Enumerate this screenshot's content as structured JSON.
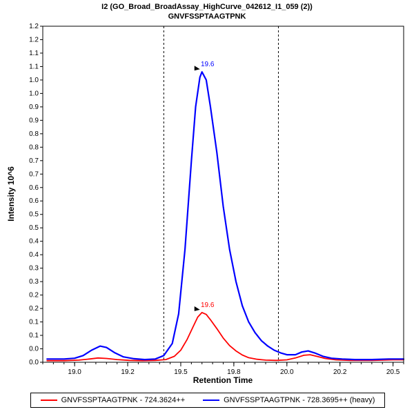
{
  "chart_data": {
    "type": "line",
    "title": "I2 (GO_Broad_BroadAssay_HighCurve_042612_I1_059 (2))",
    "subtitle": "GNVFSSPTAAGTPNK",
    "xlabel": "Retention Time",
    "ylabel": "Intensity 10^6",
    "xlim": [
      18.85,
      20.55
    ],
    "ylim": [
      0,
      1.25
    ],
    "grid": false,
    "legend_position": "bottom",
    "background_color": "#ffffff",
    "plot_border_color": "#000000",
    "x_tick_values": [
      19.0,
      19.25,
      19.5,
      19.75,
      20.0,
      20.25,
      20.5
    ],
    "x_tick_labels": [
      "19.0",
      "19.2",
      "19.5",
      "19.8",
      "20.0",
      "20.2",
      "20.5"
    ],
    "x_minor_tick_step": 0.05,
    "y_tick_step": 0.05,
    "y_tick_labels": [
      "0.0",
      "0.0",
      "0.1",
      "0.1",
      "0.2",
      "0.2",
      "0.3",
      "0.3",
      "0.4",
      "0.4",
      "0.5",
      "0.5",
      "0.6",
      "0.6",
      "0.7",
      "0.7",
      "0.8",
      "0.8",
      "0.9",
      "0.9",
      "1.0",
      "1.0",
      "1.1",
      "1.1",
      "1.2",
      "1.2"
    ],
    "integration_boundaries": [
      19.42,
      19.96
    ],
    "boundary_line_style": "dashed",
    "series": [
      {
        "name": "GNVFSSPTAAGTPNK - 724.3624++",
        "color": "#ff0000",
        "width": 1.8,
        "peak": {
          "x": 19.6,
          "y": 0.185,
          "label": "19.6"
        },
        "points": [
          [
            18.87,
            0.006
          ],
          [
            18.95,
            0.006
          ],
          [
            19.02,
            0.008
          ],
          [
            19.07,
            0.012
          ],
          [
            19.11,
            0.016
          ],
          [
            19.15,
            0.014
          ],
          [
            19.2,
            0.01
          ],
          [
            19.26,
            0.007
          ],
          [
            19.32,
            0.006
          ],
          [
            19.38,
            0.007
          ],
          [
            19.43,
            0.01
          ],
          [
            19.47,
            0.022
          ],
          [
            19.5,
            0.045
          ],
          [
            19.53,
            0.085
          ],
          [
            19.56,
            0.135
          ],
          [
            19.58,
            0.168
          ],
          [
            19.6,
            0.185
          ],
          [
            19.62,
            0.178
          ],
          [
            19.64,
            0.158
          ],
          [
            19.67,
            0.125
          ],
          [
            19.7,
            0.09
          ],
          [
            19.73,
            0.062
          ],
          [
            19.76,
            0.042
          ],
          [
            19.79,
            0.027
          ],
          [
            19.82,
            0.017
          ],
          [
            19.86,
            0.011
          ],
          [
            19.9,
            0.008
          ],
          [
            19.95,
            0.007
          ],
          [
            20.0,
            0.009
          ],
          [
            20.04,
            0.016
          ],
          [
            20.08,
            0.026
          ],
          [
            20.11,
            0.028
          ],
          [
            20.14,
            0.022
          ],
          [
            20.18,
            0.014
          ],
          [
            20.23,
            0.009
          ],
          [
            20.3,
            0.007
          ],
          [
            20.4,
            0.007
          ],
          [
            20.5,
            0.009
          ],
          [
            20.55,
            0.009
          ]
        ]
      },
      {
        "name": "GNVFSSPTAAGTPNK - 728.3695++ (heavy)",
        "color": "#0000ff",
        "width": 2.2,
        "peak": {
          "x": 19.6,
          "y": 1.08,
          "label": "19.6"
        },
        "points": [
          [
            18.87,
            0.012
          ],
          [
            18.95,
            0.012
          ],
          [
            19.0,
            0.015
          ],
          [
            19.04,
            0.025
          ],
          [
            19.08,
            0.045
          ],
          [
            19.12,
            0.06
          ],
          [
            19.15,
            0.055
          ],
          [
            19.19,
            0.035
          ],
          [
            19.23,
            0.02
          ],
          [
            19.28,
            0.013
          ],
          [
            19.33,
            0.01
          ],
          [
            19.38,
            0.012
          ],
          [
            19.42,
            0.025
          ],
          [
            19.46,
            0.07
          ],
          [
            19.49,
            0.18
          ],
          [
            19.52,
            0.42
          ],
          [
            19.55,
            0.75
          ],
          [
            19.57,
            0.95
          ],
          [
            19.59,
            1.06
          ],
          [
            19.6,
            1.08
          ],
          [
            19.62,
            1.05
          ],
          [
            19.64,
            0.95
          ],
          [
            19.67,
            0.78
          ],
          [
            19.7,
            0.58
          ],
          [
            19.73,
            0.42
          ],
          [
            19.76,
            0.3
          ],
          [
            19.79,
            0.21
          ],
          [
            19.82,
            0.15
          ],
          [
            19.85,
            0.11
          ],
          [
            19.88,
            0.08
          ],
          [
            19.91,
            0.06
          ],
          [
            19.94,
            0.045
          ],
          [
            19.97,
            0.035
          ],
          [
            20.0,
            0.028
          ],
          [
            20.04,
            0.028
          ],
          [
            20.07,
            0.038
          ],
          [
            20.1,
            0.042
          ],
          [
            20.13,
            0.035
          ],
          [
            20.17,
            0.022
          ],
          [
            20.21,
            0.015
          ],
          [
            20.26,
            0.012
          ],
          [
            20.32,
            0.01
          ],
          [
            20.4,
            0.01
          ],
          [
            20.48,
            0.012
          ],
          [
            20.55,
            0.012
          ]
        ]
      }
    ]
  }
}
